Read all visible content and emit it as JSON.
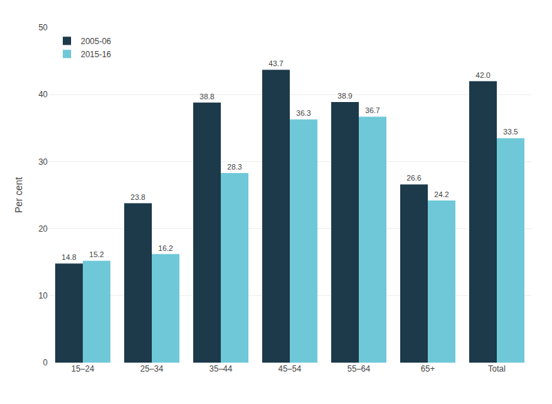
{
  "chart_data": {
    "type": "bar",
    "categories": [
      "15–24",
      "25–34",
      "35–44",
      "45–54",
      "55–64",
      "65+",
      "Total"
    ],
    "series": [
      {
        "name": "2005-06",
        "color": "#1c3a4a",
        "values": [
          14.8,
          23.8,
          38.8,
          43.7,
          38.9,
          26.6,
          42.0
        ],
        "value_labels": [
          "14.8",
          "23.8",
          "38.8",
          "43.7",
          "38.9",
          "26.6",
          "42.0"
        ]
      },
      {
        "name": "2015-16",
        "color": "#6ec8d8",
        "values": [
          15.2,
          16.2,
          28.3,
          36.3,
          36.7,
          24.2,
          33.5
        ],
        "value_labels": [
          "15.2",
          "16.2",
          "28.3",
          "36.3",
          "36.7",
          "24.2",
          "33.5"
        ]
      }
    ],
    "y_label": "Per cent",
    "ylim": [
      0,
      50
    ],
    "yticks": [
      0,
      10,
      20,
      30,
      40,
      50
    ],
    "grid": true,
    "legend": "upper left",
    "data_labels": true
  }
}
